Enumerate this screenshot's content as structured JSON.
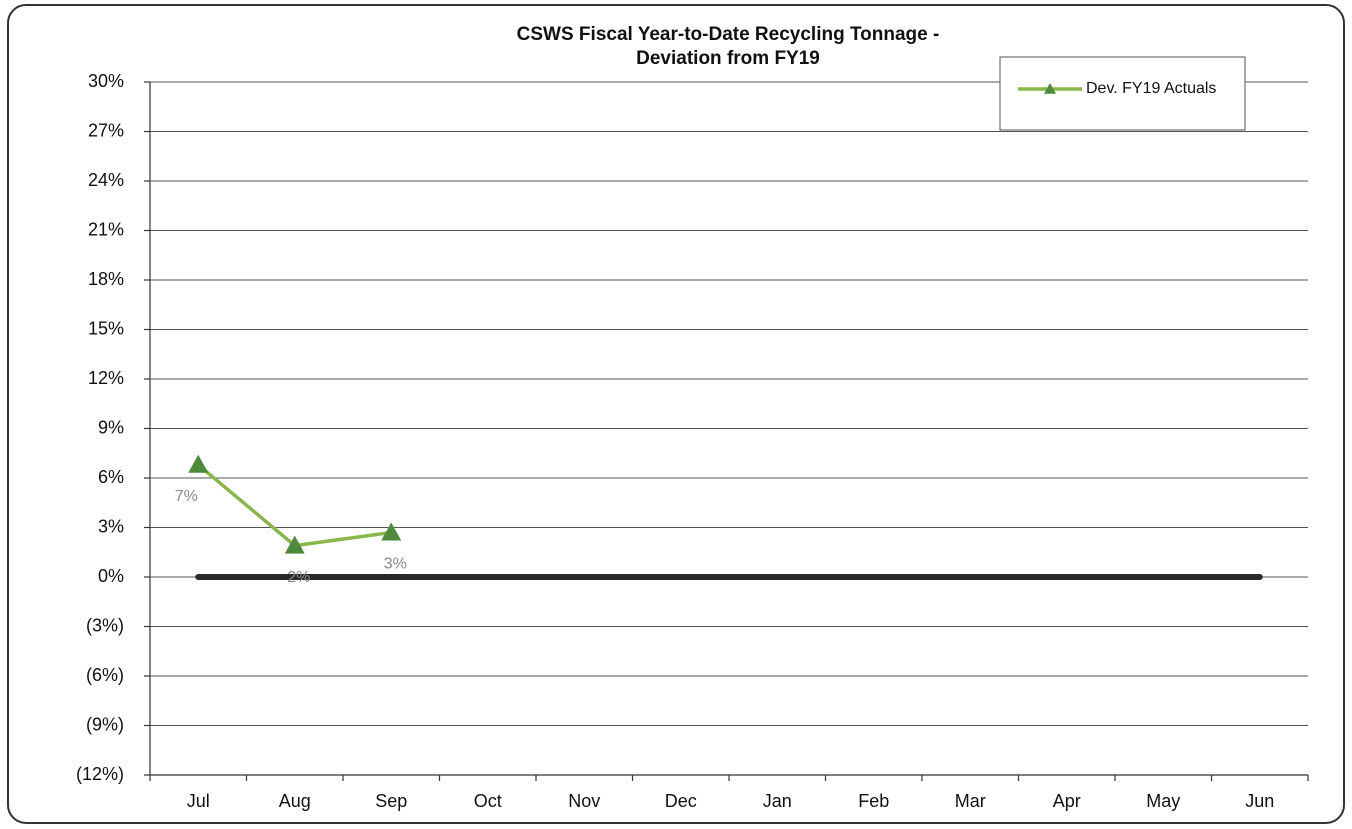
{
  "chart_data": {
    "type": "line",
    "title": "CSWS Fiscal Year-to-Date Recycling Tonnage -",
    "subtitle": "Deviation from FY19",
    "categories": [
      "Jul",
      "Aug",
      "Sep",
      "Oct",
      "Nov",
      "Dec",
      "Jan",
      "Feb",
      "Mar",
      "Apr",
      "May",
      "Jun"
    ],
    "series": [
      {
        "name": "Dev. FY19 Actuals",
        "color": "#8ab64a",
        "marker_color": "#4f8a3c",
        "values": [
          6.8,
          1.9,
          2.7,
          null,
          null,
          null,
          null,
          null,
          null,
          null,
          null,
          null
        ],
        "value_labels": [
          "7%",
          "2%",
          "3%",
          null,
          null,
          null,
          null,
          null,
          null,
          null,
          null,
          null
        ]
      }
    ],
    "ylim": [
      -12,
      30
    ],
    "yticks": [
      {
        "value": -12,
        "label": "(12%)"
      },
      {
        "value": -9,
        "label": "(9%)"
      },
      {
        "value": -6,
        "label": "(6%)"
      },
      {
        "value": -3,
        "label": "(3%)"
      },
      {
        "value": 0,
        "label": "0%"
      },
      {
        "value": 3,
        "label": "3%"
      },
      {
        "value": 6,
        "label": "6%"
      },
      {
        "value": 9,
        "label": "9%"
      },
      {
        "value": 12,
        "label": "12%"
      },
      {
        "value": 15,
        "label": "15%"
      },
      {
        "value": 18,
        "label": "18%"
      },
      {
        "value": 21,
        "label": "21%"
      },
      {
        "value": 24,
        "label": "24%"
      },
      {
        "value": 27,
        "label": "27%"
      },
      {
        "value": 30,
        "label": "30%"
      }
    ],
    "grid": true,
    "zero_line": true,
    "legend": "top-right"
  }
}
